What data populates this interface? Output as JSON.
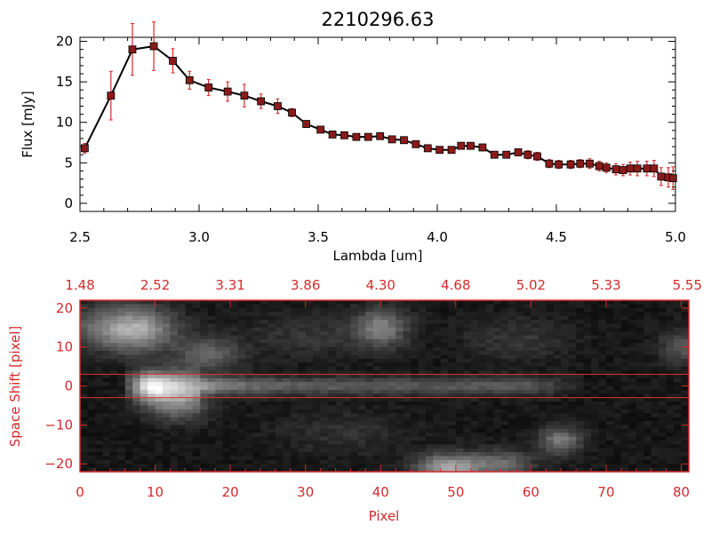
{
  "title": "2210296.63",
  "colors": {
    "axis": "#000000",
    "accent": "#d42a2a",
    "line": "#000000",
    "marker": "#8b1a1a",
    "errorbar": "#d42a2a",
    "band": "#e03030",
    "background": "#ffffff"
  },
  "chart_data": [
    {
      "type": "line",
      "title": "2210296.63",
      "xlabel": "Lambda [um]",
      "ylabel": "Flux [mJy]",
      "xlim": [
        2.5,
        5.0
      ],
      "ylim": [
        -1,
        20.5
      ],
      "xticks": [
        2.5,
        3.0,
        3.5,
        4.0,
        4.5,
        5.0
      ],
      "xtick_labels": [
        "2.5",
        "3.0",
        "3.5",
        "4.0",
        "4.5",
        "5.0"
      ],
      "yticks": [
        0,
        5,
        10,
        15,
        20
      ],
      "ytick_labels": [
        "0",
        "5",
        "10",
        "15",
        "20"
      ],
      "series": [
        {
          "x": [
            2.52,
            2.63,
            2.72,
            2.81,
            2.89,
            2.96,
            3.04,
            3.12,
            3.19,
            3.26,
            3.33,
            3.39,
            3.45,
            3.51,
            3.56,
            3.61,
            3.66,
            3.71,
            3.76,
            3.81,
            3.86,
            3.91,
            3.96,
            4.01,
            4.06,
            4.1,
            4.14,
            4.19,
            4.24,
            4.29,
            4.34,
            4.38,
            4.42,
            4.47,
            4.51,
            4.56,
            4.6,
            4.64,
            4.68,
            4.71,
            4.75,
            4.78,
            4.81,
            4.84,
            4.88,
            4.91,
            4.94,
            4.97,
            4.99
          ],
          "y": [
            6.8,
            13.3,
            19.0,
            19.4,
            17.6,
            15.2,
            14.3,
            13.8,
            13.3,
            12.6,
            12.0,
            11.2,
            9.8,
            9.1,
            8.5,
            8.4,
            8.2,
            8.2,
            8.3,
            7.9,
            7.8,
            7.3,
            6.8,
            6.6,
            6.6,
            7.1,
            7.1,
            6.9,
            6.0,
            6.0,
            6.3,
            6.0,
            5.8,
            4.9,
            4.8,
            4.8,
            4.9,
            4.9,
            4.6,
            4.4,
            4.2,
            4.1,
            4.3,
            4.3,
            4.3,
            4.3,
            3.3,
            3.2,
            3.1
          ],
          "yerr": [
            0.6,
            3.0,
            3.2,
            3.0,
            1.5,
            1.1,
            1.0,
            1.2,
            1.4,
            0.9,
            0.9,
            0.5,
            0.4,
            0.3,
            0.3,
            0.3,
            0.3,
            0.3,
            0.3,
            0.3,
            0.3,
            0.3,
            0.3,
            0.3,
            0.3,
            0.3,
            0.4,
            0.4,
            0.4,
            0.4,
            0.4,
            0.5,
            0.5,
            0.5,
            0.5,
            0.5,
            0.5,
            0.6,
            0.6,
            0.6,
            0.7,
            0.7,
            0.8,
            0.9,
            0.9,
            1.0,
            1.1,
            1.2,
            1.4
          ]
        }
      ]
    },
    {
      "type": "heatmap",
      "xlabel": "Pixel",
      "ylabel": "Space Shift [pixel]",
      "xlim": [
        0,
        81
      ],
      "ylim": [
        -22,
        22
      ],
      "xticks": [
        0,
        10,
        20,
        30,
        40,
        50,
        60,
        70,
        80
      ],
      "xtick_labels": [
        "0",
        "10",
        "20",
        "30",
        "40",
        "50",
        "60",
        "70",
        "80"
      ],
      "yticks": [
        -20,
        -10,
        0,
        10,
        20
      ],
      "ytick_labels": [
        "−20",
        "−10",
        "0",
        "10",
        "20"
      ],
      "top_axis_tick_labels": [
        "1.48",
        "2.52",
        "3.31",
        "3.86",
        "4.30",
        "4.68",
        "5.02",
        "5.33",
        "5.55"
      ],
      "extraction_band": [
        -3,
        3
      ],
      "trace": {
        "x_start": 10,
        "x_end": 67,
        "y_center": 0,
        "peak_x": 10
      },
      "blobs": [
        {
          "x": 5,
          "y": 15,
          "amp": 0.38,
          "sx": 5,
          "sy": 4
        },
        {
          "x": 17,
          "y": 8,
          "amp": 0.3,
          "sx": 3,
          "sy": 3
        },
        {
          "x": 8,
          "y": 14,
          "amp": 0.28,
          "sx": 3,
          "sy": 4
        },
        {
          "x": 40,
          "y": 15,
          "amp": 0.4,
          "sx": 2.5,
          "sy": 3.5
        },
        {
          "x": 13,
          "y": -5,
          "amp": 0.35,
          "sx": 3,
          "sy": 3
        },
        {
          "x": 49,
          "y": -21,
          "amp": 0.55,
          "sx": 3,
          "sy": 2.5
        },
        {
          "x": 56,
          "y": -20,
          "amp": 0.32,
          "sx": 3,
          "sy": 2.5
        },
        {
          "x": 64,
          "y": -14,
          "amp": 0.38,
          "sx": 2,
          "sy": 2.5
        },
        {
          "x": 80,
          "y": 10,
          "amp": 0.25,
          "sx": 2,
          "sy": 3
        },
        {
          "x": 30,
          "y": 13,
          "amp": 0.12,
          "sx": 6,
          "sy": 4
        },
        {
          "x": 58,
          "y": 12,
          "amp": 0.12,
          "sx": 5,
          "sy": 4
        },
        {
          "x": 35,
          "y": -12,
          "amp": 0.1,
          "sx": 6,
          "sy": 4
        }
      ]
    }
  ]
}
